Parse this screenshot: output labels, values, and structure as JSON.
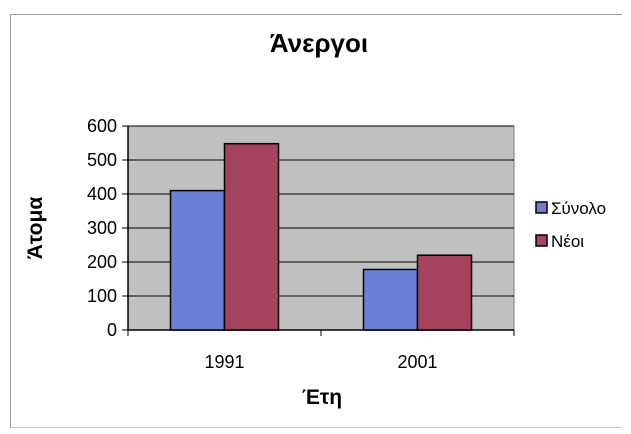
{
  "chart_data": {
    "type": "bar",
    "title": "Άνεργοι",
    "xlabel": "Έτη",
    "ylabel": "Άτομα",
    "categories": [
      "1991",
      "2001"
    ],
    "series": [
      {
        "name": "Σύνολο",
        "values": [
          410,
          178
        ],
        "color": "#6b7fd6"
      },
      {
        "name": "Νέοι",
        "values": [
          548,
          220
        ],
        "color": "#a6435f"
      }
    ],
    "ylim": [
      0,
      600
    ],
    "yticks": [
      0,
      100,
      200,
      300,
      400,
      500,
      600
    ],
    "grid": true,
    "legend": "right",
    "plot_background": "#c0c0c0"
  }
}
